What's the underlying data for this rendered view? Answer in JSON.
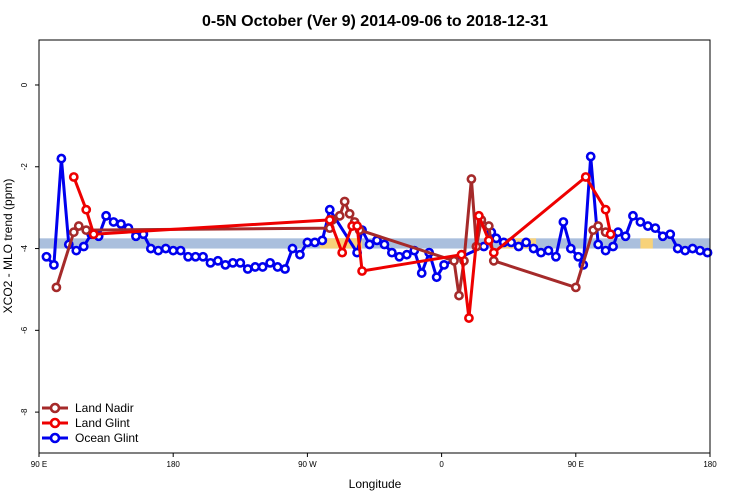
{
  "chart_data": {
    "type": "line",
    "title": "0-5N October (Ver 9)   2014-09-06 to 2018-12-31",
    "xlabel": "Longitude",
    "ylabel": "XCO2 - MLO trend (ppm)",
    "xlim": [
      -90,
      180
    ],
    "ylim": [
      -9,
      1.1
    ],
    "x_ticks": [
      {
        "value": -90,
        "label": "90 E"
      },
      {
        "value": -36,
        "label": "180"
      },
      {
        "value": 18,
        "label": "90 W"
      },
      {
        "value": 72,
        "label": "0"
      },
      {
        "value": 126,
        "label": "90 E"
      },
      {
        "value": 180,
        "label": "180"
      }
    ],
    "y_ticks": [
      0,
      -2,
      -4,
      -6,
      -8
    ],
    "band": {
      "y_min": -4.0,
      "y_max": -3.75,
      "color": "#aabfdd"
    },
    "band_highlights": [
      {
        "x_min": 23,
        "x_max": 40,
        "color": "#f7d27a"
      },
      {
        "x_min": 96,
        "x_max": 110,
        "color": "#f7d27a"
      },
      {
        "x_min": 152,
        "x_max": 157,
        "color": "#f7d27a"
      }
    ],
    "legend": {
      "position": "bottom-left",
      "entries": [
        "Land Nadir",
        "Land Glint",
        "Ocean Glint"
      ]
    },
    "series": [
      {
        "name": "Ocean Glint",
        "color": "#0000ee",
        "points": [
          [
            -87,
            -4.2
          ],
          [
            -84,
            -4.4
          ],
          [
            -81,
            -1.8
          ],
          [
            -78,
            -3.9
          ],
          [
            -75,
            -4.05
          ],
          [
            -72,
            -3.95
          ],
          [
            -69,
            -3.65
          ],
          [
            -66,
            -3.7
          ],
          [
            -63,
            -3.2
          ],
          [
            -60,
            -3.35
          ],
          [
            -57,
            -3.4
          ],
          [
            -54,
            -3.5
          ],
          [
            -51,
            -3.7
          ],
          [
            -48,
            -3.65
          ],
          [
            -45,
            -4.0
          ],
          [
            -42,
            -4.05
          ],
          [
            -39,
            -4.0
          ],
          [
            -36,
            -4.05
          ],
          [
            -33,
            -4.05
          ],
          [
            -30,
            -4.2
          ],
          [
            -27,
            -4.2
          ],
          [
            -24,
            -4.2
          ],
          [
            -21,
            -4.35
          ],
          [
            -18,
            -4.3
          ],
          [
            -15,
            -4.4
          ],
          [
            -12,
            -4.35
          ],
          [
            -9,
            -4.35
          ],
          [
            -6,
            -4.5
          ],
          [
            -3,
            -4.45
          ],
          [
            0,
            -4.45
          ],
          [
            3,
            -4.35
          ],
          [
            6,
            -4.45
          ],
          [
            9,
            -4.5
          ],
          [
            12,
            -4.0
          ],
          [
            15,
            -4.15
          ],
          [
            18,
            -3.85
          ],
          [
            21,
            -3.85
          ],
          [
            24,
            -3.8
          ],
          [
            27,
            -3.05
          ],
          [
            38,
            -4.1
          ],
          [
            40,
            -3.55
          ],
          [
            43,
            -3.9
          ],
          [
            46,
            -3.8
          ],
          [
            49,
            -3.9
          ],
          [
            52,
            -4.1
          ],
          [
            55,
            -4.2
          ],
          [
            58,
            -4.15
          ],
          [
            61,
            -4.05
          ],
          [
            64,
            -4.6
          ],
          [
            67,
            -4.1
          ],
          [
            70,
            -4.7
          ],
          [
            73,
            -4.4
          ],
          [
            89,
            -3.95
          ],
          [
            92,
            -3.6
          ],
          [
            94,
            -3.75
          ],
          [
            97,
            -3.85
          ],
          [
            100,
            -3.85
          ],
          [
            103,
            -3.95
          ],
          [
            106,
            -3.85
          ],
          [
            109,
            -4.0
          ],
          [
            112,
            -4.1
          ],
          [
            115,
            -4.05
          ],
          [
            118,
            -4.2
          ],
          [
            121,
            -3.35
          ],
          [
            124,
            -4.0
          ],
          [
            127,
            -4.2
          ],
          [
            129,
            -4.4
          ],
          [
            132,
            -1.75
          ],
          [
            135,
            -3.9
          ],
          [
            138,
            -4.05
          ],
          [
            141,
            -3.95
          ],
          [
            143,
            -3.6
          ],
          [
            146,
            -3.7
          ],
          [
            149,
            -3.2
          ],
          [
            152,
            -3.35
          ],
          [
            155,
            -3.45
          ],
          [
            158,
            -3.5
          ],
          [
            161,
            -3.7
          ],
          [
            164,
            -3.65
          ],
          [
            167,
            -4.0
          ],
          [
            170,
            -4.05
          ],
          [
            173,
            -4.0
          ],
          [
            176,
            -4.05
          ],
          [
            179,
            -4.1
          ]
        ]
      },
      {
        "name": "Land Nadir",
        "color": "#a52a2a",
        "points": [
          [
            -83,
            -4.95
          ],
          [
            -76,
            -3.6
          ],
          [
            -74,
            -3.45
          ],
          [
            -71,
            -3.55
          ],
          [
            27,
            -3.5
          ],
          [
            28,
            -3.3
          ],
          [
            31,
            -3.2
          ],
          [
            33,
            -2.85
          ],
          [
            35,
            -3.15
          ],
          [
            37,
            -3.35
          ],
          [
            39,
            -3.55
          ],
          [
            77,
            -4.3
          ],
          [
            79,
            -5.15
          ],
          [
            81,
            -4.3
          ],
          [
            84,
            -2.3
          ],
          [
            86,
            -3.95
          ],
          [
            88,
            -3.3
          ],
          [
            91,
            -3.45
          ],
          [
            93,
            -4.3
          ],
          [
            126,
            -4.95
          ],
          [
            133,
            -3.55
          ],
          [
            135,
            -3.45
          ],
          [
            138,
            -3.6
          ]
        ]
      },
      {
        "name": "Land Glint",
        "color": "#ee0000",
        "points": [
          [
            -76,
            -2.25
          ],
          [
            -71,
            -3.05
          ],
          [
            -68,
            -3.65
          ],
          [
            27,
            -3.3
          ],
          [
            32,
            -4.1
          ],
          [
            36,
            -3.45
          ],
          [
            38,
            -3.45
          ],
          [
            40,
            -4.55
          ],
          [
            80,
            -4.15
          ],
          [
            83,
            -5.7
          ],
          [
            87,
            -3.2
          ],
          [
            91,
            -3.8
          ],
          [
            93,
            -4.1
          ],
          [
            130,
            -2.25
          ],
          [
            138,
            -3.05
          ],
          [
            140,
            -3.65
          ]
        ]
      }
    ]
  }
}
